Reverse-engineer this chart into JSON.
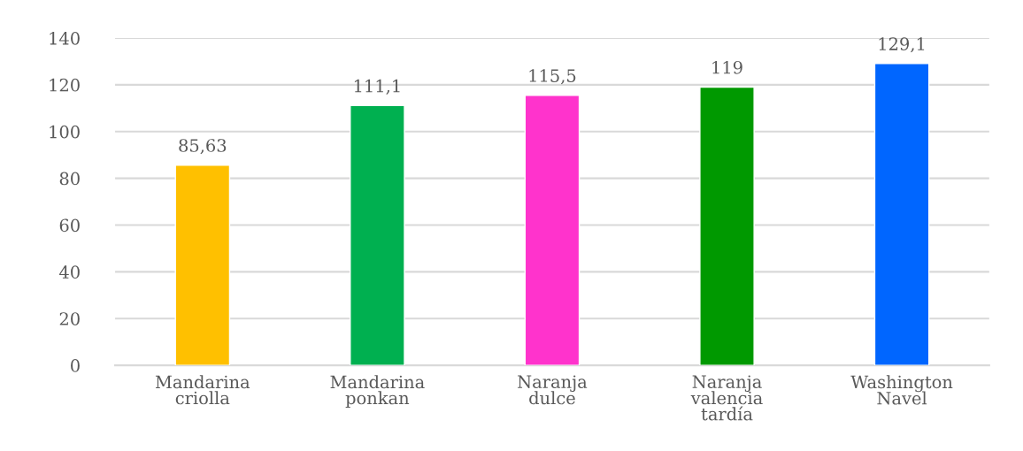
{
  "chart_data": {
    "type": "bar",
    "categories": [
      "Mandarina criolla",
      "Mandarina ponkan",
      "Naranja dulce",
      "Naranja valencia tardía",
      "Washington Navel"
    ],
    "values": [
      85.63,
      111.1,
      115.5,
      119,
      129.1
    ],
    "value_labels": [
      "85,63",
      "111,1",
      "115,5",
      "119",
      "129,1"
    ],
    "colors": [
      "#ffc000",
      "#00b050",
      "#ff33cc",
      "#009900",
      "#0066ff"
    ],
    "ylim": [
      0,
      140
    ],
    "yticks": [
      0,
      20,
      40,
      60,
      80,
      100,
      120,
      140
    ],
    "grid": "y"
  }
}
